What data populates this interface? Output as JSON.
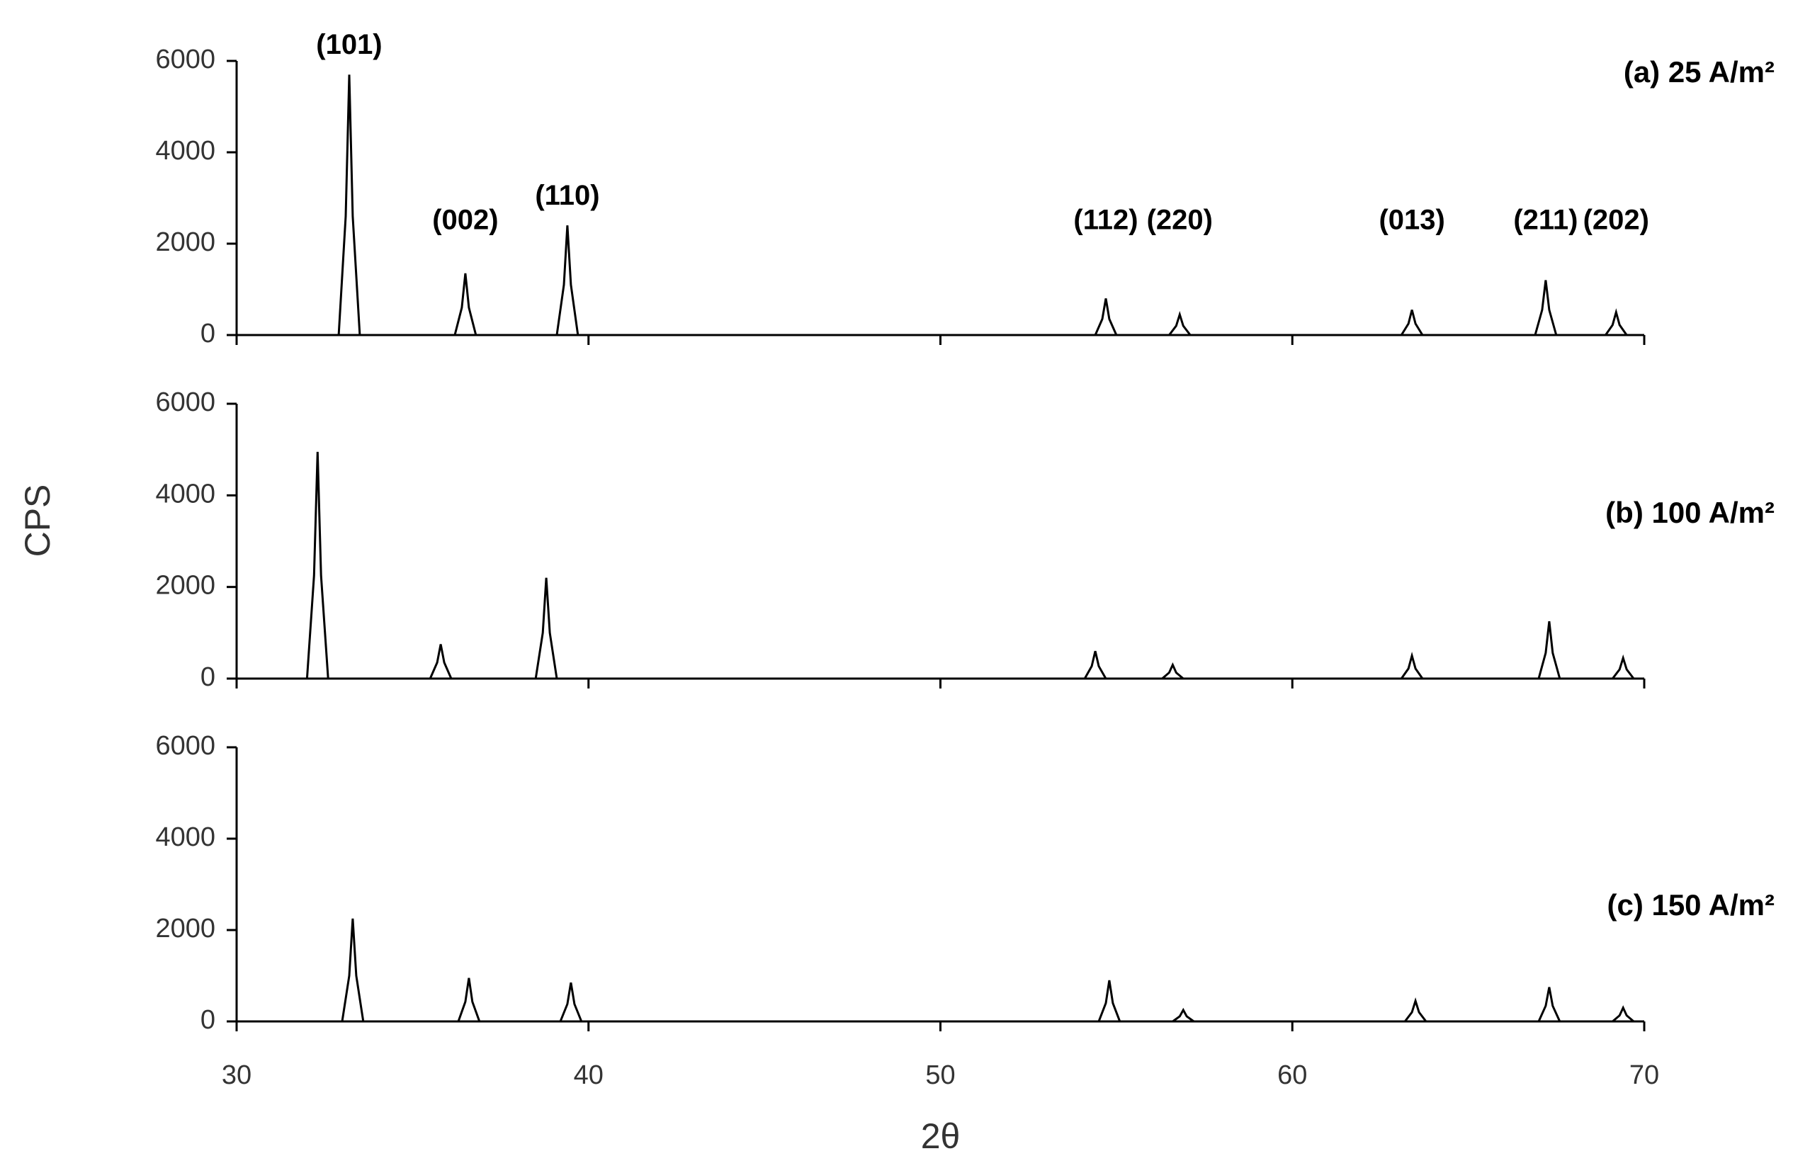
{
  "chart_data": [
    {
      "type": "line",
      "title": "(a) 25 A/m²",
      "color": "#000000",
      "x": [
        30,
        32.9,
        33.1,
        33.2,
        33.3,
        33.5,
        36.2,
        36.4,
        36.5,
        36.6,
        36.8,
        39.1,
        39.3,
        39.4,
        39.5,
        39.7,
        54.4,
        54.6,
        54.7,
        54.8,
        55.0,
        56.5,
        56.7,
        56.8,
        56.9,
        57.1,
        63.1,
        63.3,
        63.4,
        63.5,
        63.7,
        66.9,
        67.1,
        67.2,
        67.3,
        67.5,
        68.9,
        69.1,
        69.2,
        69.3,
        69.5,
        70
      ],
      "values": [
        0,
        0,
        2600,
        5700,
        2600,
        0,
        0,
        600,
        1350,
        600,
        0,
        0,
        1100,
        2400,
        1100,
        0,
        0,
        350,
        800,
        350,
        0,
        0,
        200,
        450,
        200,
        0,
        0,
        250,
        550,
        250,
        0,
        0,
        550,
        1200,
        550,
        0,
        0,
        220,
        500,
        220,
        0,
        0
      ],
      "annotations": [
        {
          "text": "(101)",
          "x": 33.2
        },
        {
          "text": "(002)",
          "x": 36.5
        },
        {
          "text": "(110)",
          "x": 39.4
        },
        {
          "text": "(112)",
          "x": 54.7
        },
        {
          "text": "(220)",
          "x": 56.8
        },
        {
          "text": "(013)",
          "x": 63.4
        },
        {
          "text": "(211)",
          "x": 67.2
        },
        {
          "text": "(202)",
          "x": 69.2
        }
      ],
      "xlim": [
        30,
        70
      ],
      "ylim": [
        0,
        6000
      ],
      "yticks": [
        0,
        2000,
        4000,
        6000
      ]
    },
    {
      "type": "line",
      "title": "(b) 100 A/m²",
      "color": "#000000",
      "ylabel": "CPS",
      "x": [
        30,
        32.0,
        32.2,
        32.3,
        32.4,
        32.6,
        35.5,
        35.7,
        35.8,
        35.9,
        36.1,
        38.5,
        38.7,
        38.8,
        38.9,
        39.1,
        54.1,
        54.3,
        54.4,
        54.5,
        54.7,
        56.3,
        56.5,
        56.6,
        56.7,
        56.9,
        63.1,
        63.3,
        63.4,
        63.5,
        63.7,
        67.0,
        67.2,
        67.3,
        67.4,
        67.6,
        69.1,
        69.3,
        69.4,
        69.5,
        69.7,
        70
      ],
      "values": [
        0,
        0,
        2250,
        4950,
        2250,
        0,
        0,
        350,
        750,
        350,
        0,
        0,
        1000,
        2200,
        1000,
        0,
        0,
        270,
        600,
        270,
        0,
        0,
        130,
        300,
        130,
        0,
        0,
        220,
        500,
        220,
        0,
        0,
        560,
        1250,
        560,
        0,
        0,
        200,
        450,
        200,
        0,
        0
      ],
      "xlim": [
        30,
        70
      ],
      "ylim": [
        0,
        6000
      ],
      "yticks": [
        0,
        2000,
        4000,
        6000
      ]
    },
    {
      "type": "line",
      "title": "(c) 150 A/m²",
      "color": "#000000",
      "xlabel": "2θ",
      "x": [
        30,
        33.0,
        33.2,
        33.3,
        33.4,
        33.6,
        36.3,
        36.5,
        36.6,
        36.7,
        36.9,
        39.2,
        39.4,
        39.5,
        39.6,
        39.8,
        54.5,
        54.7,
        54.8,
        54.9,
        55.1,
        56.6,
        56.8,
        56.9,
        57.0,
        57.2,
        63.2,
        63.4,
        63.5,
        63.6,
        63.8,
        67.0,
        67.2,
        67.3,
        67.4,
        67.6,
        69.1,
        69.3,
        69.4,
        69.5,
        69.7,
        70
      ],
      "values": [
        0,
        0,
        1000,
        2250,
        1000,
        0,
        0,
        430,
        950,
        430,
        0,
        0,
        380,
        850,
        380,
        0,
        0,
        400,
        900,
        400,
        0,
        0,
        110,
        250,
        110,
        0,
        0,
        200,
        450,
        200,
        0,
        0,
        340,
        750,
        340,
        0,
        0,
        130,
        300,
        130,
        0,
        0
      ],
      "xlim": [
        30,
        70
      ],
      "xticks": [
        30,
        40,
        50,
        60,
        70
      ],
      "ylim": [
        0,
        6000
      ],
      "yticks": [
        0,
        2000,
        4000,
        6000
      ]
    }
  ]
}
